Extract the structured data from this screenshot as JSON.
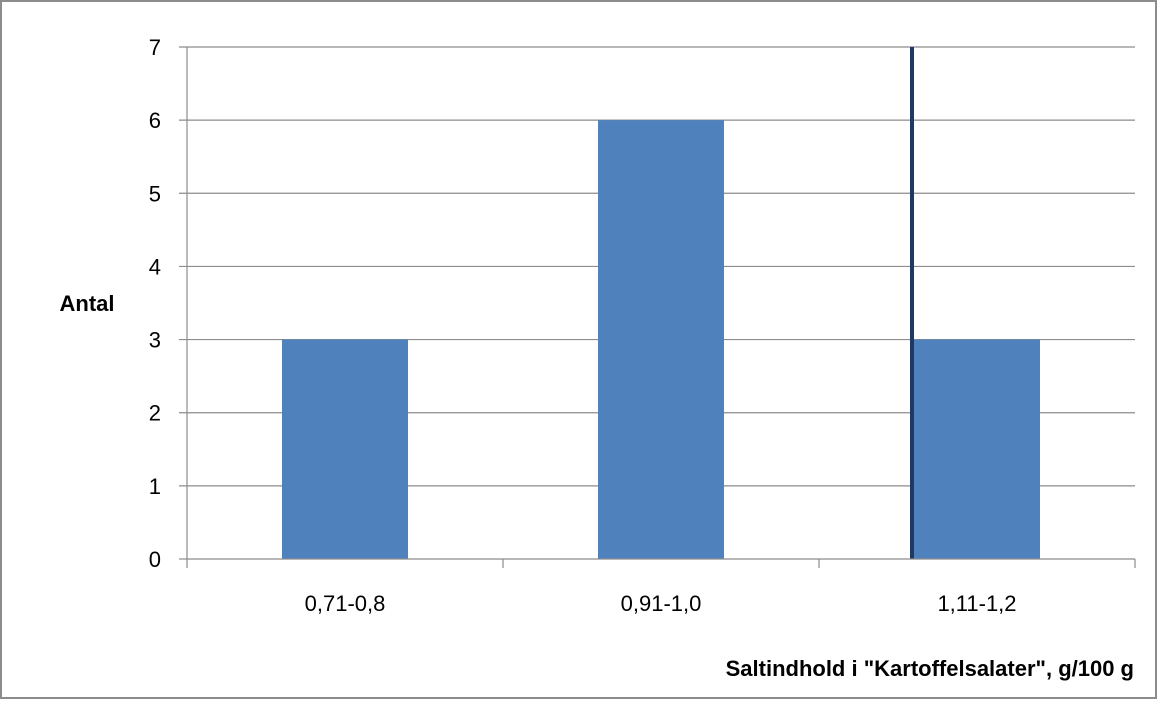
{
  "chart_data": {
    "type": "bar",
    "categories": [
      "0,71-0,8",
      "0,91-1,0",
      "1,11-1,2"
    ],
    "values": [
      3,
      6,
      3
    ],
    "title": "",
    "xlabel": "Saltindhold i \"Kartoffelsalater\", g/100 g",
    "ylabel": "Antal",
    "ylim": [
      0,
      7
    ],
    "yticks": [
      "0",
      "1",
      "2",
      "3",
      "4",
      "5",
      "6",
      "7"
    ],
    "grid": true,
    "legend": "none",
    "colors": {
      "bar": "#4f81bd",
      "grid": "#8c8c8c",
      "marker_line": "#1f3864"
    },
    "annotations": [
      {
        "type": "vertical-line",
        "x_category_index": 2,
        "from_y": 0,
        "to_y": 7
      }
    ]
  }
}
